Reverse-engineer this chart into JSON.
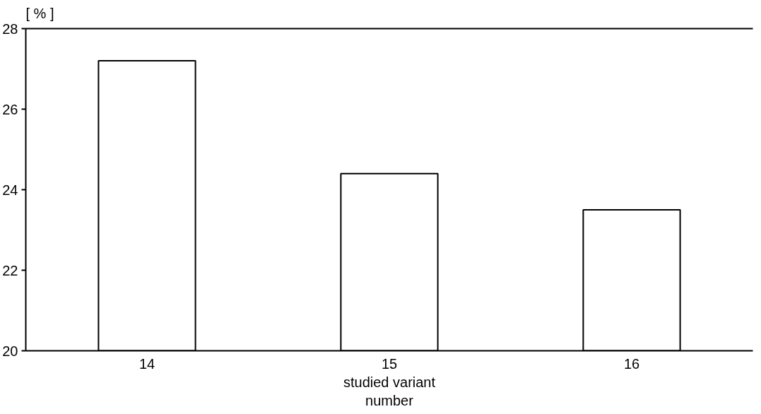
{
  "chart_data": {
    "type": "bar",
    "ylabel": "[ % ]",
    "xlabel": "studied variant number",
    "categories": [
      "14",
      "15",
      "16"
    ],
    "values": [
      27.2,
      24.4,
      23.5
    ],
    "color": "#ffffff",
    "ylim": [
      20,
      28
    ],
    "yticks": [
      20,
      22,
      24,
      26,
      28
    ],
    "grid": false
  }
}
